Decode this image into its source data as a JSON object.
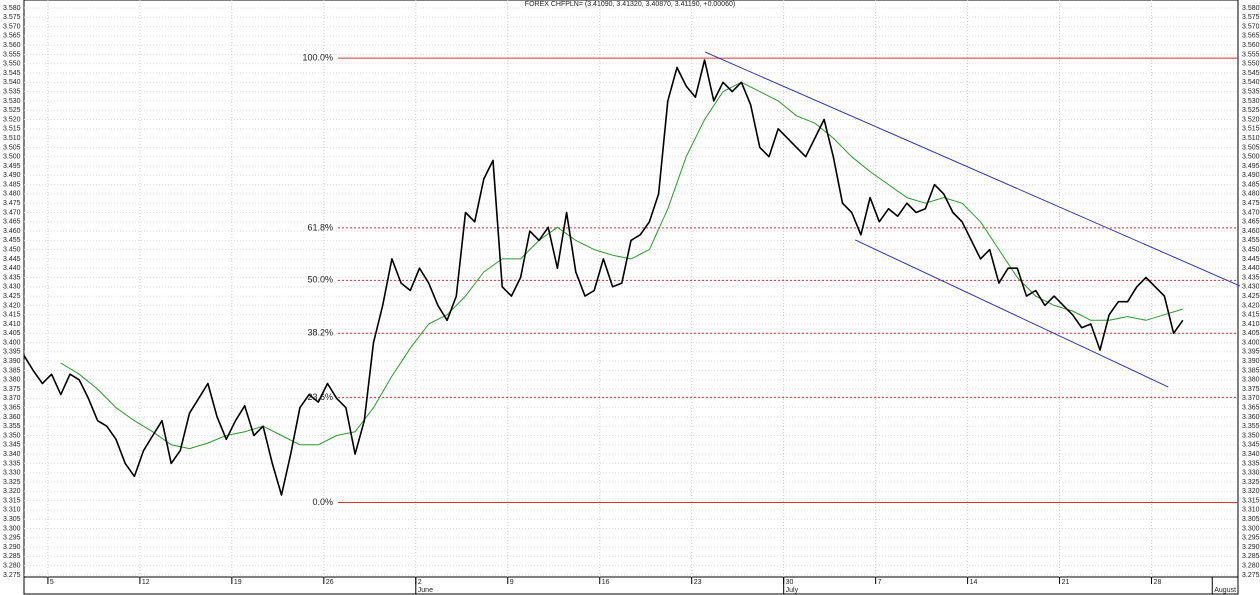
{
  "chart_data": {
    "type": "line",
    "title": "FOREX CHFPLN= (3.41090, 3.41320, 3.40870, 3.41190, +0.00060)",
    "xlim": [
      0,
      66
    ],
    "ylim": [
      3.2739,
      3.5843
    ],
    "grid": true,
    "xticks": [
      {
        "value": 1.3,
        "label": "5"
      },
      {
        "value": 6.3,
        "label": "12"
      },
      {
        "value": 11.3,
        "label": "19"
      },
      {
        "value": 16.3,
        "label": "26"
      },
      {
        "value": 21.3,
        "label": "2"
      },
      {
        "value": 26.3,
        "label": "9"
      },
      {
        "value": 31.3,
        "label": "16"
      },
      {
        "value": 36.3,
        "label": "23"
      },
      {
        "value": 41.3,
        "label": "30"
      },
      {
        "value": 46.3,
        "label": "7"
      },
      {
        "value": 51.3,
        "label": "14"
      },
      {
        "value": 56.3,
        "label": "21"
      },
      {
        "value": 61.3,
        "label": "28"
      }
    ],
    "month_labels": [
      {
        "value": 21.3,
        "label": "June"
      },
      {
        "value": 41.3,
        "label": "July"
      },
      {
        "value": 64.6,
        "label": "August"
      }
    ],
    "yticks": [
      {
        "value": 3.275,
        "label": "3.275"
      },
      {
        "value": 3.28,
        "label": "3.280"
      },
      {
        "value": 3.285,
        "label": "3.285"
      },
      {
        "value": 3.29,
        "label": "3.290"
      },
      {
        "value": 3.295,
        "label": "3.295"
      },
      {
        "value": 3.3,
        "label": "3.300"
      },
      {
        "value": 3.305,
        "label": "3.305"
      },
      {
        "value": 3.31,
        "label": "3.310"
      },
      {
        "value": 3.315,
        "label": "3.315"
      },
      {
        "value": 3.32,
        "label": "3.320"
      },
      {
        "value": 3.325,
        "label": "3.325"
      },
      {
        "value": 3.33,
        "label": "3.330"
      },
      {
        "value": 3.335,
        "label": "3.335"
      },
      {
        "value": 3.34,
        "label": "3.340"
      },
      {
        "value": 3.345,
        "label": "3.345"
      },
      {
        "value": 3.35,
        "label": "3.350"
      },
      {
        "value": 3.355,
        "label": "3.355"
      },
      {
        "value": 3.36,
        "label": "3.360"
      },
      {
        "value": 3.365,
        "label": "3.365"
      },
      {
        "value": 3.37,
        "label": "3.370"
      },
      {
        "value": 3.375,
        "label": "3.375"
      },
      {
        "value": 3.38,
        "label": "3.380"
      },
      {
        "value": 3.385,
        "label": "3.385"
      },
      {
        "value": 3.39,
        "label": "3.390"
      },
      {
        "value": 3.395,
        "label": "3.395"
      },
      {
        "value": 3.4,
        "label": "3.400"
      },
      {
        "value": 3.405,
        "label": "3.405"
      },
      {
        "value": 3.41,
        "label": "3.410"
      },
      {
        "value": 3.415,
        "label": "3.415"
      },
      {
        "value": 3.42,
        "label": "3.420"
      },
      {
        "value": 3.425,
        "label": "3.425"
      },
      {
        "value": 3.43,
        "label": "3.430"
      },
      {
        "value": 3.435,
        "label": "3.435"
      },
      {
        "value": 3.44,
        "label": "3.440"
      },
      {
        "value": 3.445,
        "label": "3.445"
      },
      {
        "value": 3.45,
        "label": "3.450"
      },
      {
        "value": 3.455,
        "label": "3.455"
      },
      {
        "value": 3.46,
        "label": "3.460"
      },
      {
        "value": 3.465,
        "label": "3.465"
      },
      {
        "value": 3.47,
        "label": "3.470"
      },
      {
        "value": 3.475,
        "label": "3.475"
      },
      {
        "value": 3.48,
        "label": "3.480"
      },
      {
        "value": 3.485,
        "label": "3.485"
      },
      {
        "value": 3.49,
        "label": "3.490"
      },
      {
        "value": 3.495,
        "label": "3.495"
      },
      {
        "value": 3.5,
        "label": "3.500"
      },
      {
        "value": 3.505,
        "label": "3.505"
      },
      {
        "value": 3.51,
        "label": "3.510"
      },
      {
        "value": 3.515,
        "label": "3.515"
      },
      {
        "value": 3.52,
        "label": "3.520"
      },
      {
        "value": 3.525,
        "label": "3.525"
      },
      {
        "value": 3.53,
        "label": "3.530"
      },
      {
        "value": 3.535,
        "label": "3.535"
      },
      {
        "value": 3.54,
        "label": "3.540"
      },
      {
        "value": 3.545,
        "label": "3.545"
      },
      {
        "value": 3.55,
        "label": "3.550"
      },
      {
        "value": 3.555,
        "label": "3.555"
      },
      {
        "value": 3.56,
        "label": "3.560"
      },
      {
        "value": 3.565,
        "label": "3.565"
      },
      {
        "value": 3.57,
        "label": "3.570"
      },
      {
        "value": 3.575,
        "label": "3.575"
      },
      {
        "value": 3.58,
        "label": "3.580"
      }
    ],
    "levels": [
      {
        "value": 3.553,
        "label": "100.0%",
        "dashed": false
      },
      {
        "value": 3.4617,
        "label": "61.8%",
        "dashed": true
      },
      {
        "value": 3.4335,
        "label": "50.0%",
        "dashed": true
      },
      {
        "value": 3.405,
        "label": "38.2%",
        "dashed": true
      },
      {
        "value": 3.3705,
        "label": "23.6%",
        "dashed": true
      },
      {
        "value": 3.314,
        "label": "0.0%",
        "dashed": false
      }
    ],
    "level_color": "#e03030",
    "channel_color": "#3030c0",
    "channel": [
      {
        "x": [
          37.03,
          66.1
        ],
        "values": [
          3.5563,
          3.4305
        ]
      },
      {
        "x": [
          45.19,
          62.21
        ],
        "values": [
          3.4552,
          3.3761
        ]
      }
    ],
    "series": [
      {
        "color": "#000000",
        "x": [
          0,
          0.5,
          1,
          1.5,
          2,
          2.5,
          3,
          3.5,
          4,
          4.5,
          5,
          5.5,
          6,
          6.5,
          7,
          7.5,
          8,
          8.5,
          9,
          9.5,
          10,
          10.5,
          11,
          11.5,
          12,
          12.5,
          13,
          13.5,
          14,
          14.5,
          15,
          15.5,
          16,
          16.5,
          17,
          17.5,
          18,
          18.5,
          19,
          19.5,
          20,
          20.5,
          21,
          21.5,
          22,
          22.5,
          23,
          23.5,
          24,
          24.5,
          25,
          25.5,
          26,
          26.5,
          27,
          27.5,
          28,
          28.5,
          29,
          29.5,
          30,
          30.5,
          31,
          31.5,
          32,
          32.5,
          33,
          33.5,
          34,
          34.5,
          35,
          35.5,
          36,
          36.5,
          37,
          37.5,
          38,
          38.5,
          39,
          39.5,
          40,
          40.5,
          41,
          41.5,
          42,
          42.5,
          43,
          43.5,
          44,
          44.5,
          45,
          45.5,
          46,
          46.5,
          47,
          47.5,
          48,
          48.5,
          49,
          49.5,
          50,
          50.5,
          51,
          51.5,
          52,
          52.5,
          53,
          53.5,
          54,
          54.5,
          55,
          55.5,
          56,
          56.5,
          57,
          57.5,
          58,
          58.5,
          59,
          59.5,
          60,
          60.5,
          61,
          61.5,
          62,
          62.5,
          63
        ],
        "values": [
          3.393,
          3.385,
          3.378,
          3.383,
          3.372,
          3.383,
          3.38,
          3.37,
          3.358,
          3.355,
          3.348,
          3.335,
          3.328,
          3.342,
          3.35,
          3.358,
          3.335,
          3.342,
          3.362,
          3.37,
          3.378,
          3.36,
          3.348,
          3.358,
          3.366,
          3.35,
          3.355,
          3.335,
          3.318,
          3.34,
          3.365,
          3.372,
          3.368,
          3.378,
          3.37,
          3.365,
          3.34,
          3.358,
          3.4,
          3.42,
          3.445,
          3.432,
          3.428,
          3.44,
          3.432,
          3.42,
          3.412,
          3.425,
          3.47,
          3.465,
          3.488,
          3.498,
          3.43,
          3.425,
          3.435,
          3.46,
          3.455,
          3.462,
          3.44,
          3.47,
          3.438,
          3.425,
          3.428,
          3.445,
          3.43,
          3.432,
          3.455,
          3.458,
          3.465,
          3.48,
          3.53,
          3.548,
          3.538,
          3.532,
          3.552,
          3.53,
          3.54,
          3.535,
          3.54,
          3.528,
          3.505,
          3.5,
          3.515,
          3.51,
          3.505,
          3.5,
          3.51,
          3.52,
          3.5,
          3.475,
          3.47,
          3.458,
          3.478,
          3.465,
          3.472,
          3.468,
          3.475,
          3.47,
          3.472,
          3.485,
          3.48,
          3.47,
          3.465,
          3.455,
          3.445,
          3.45,
          3.432,
          3.44,
          3.44,
          3.425,
          3.428,
          3.42,
          3.425,
          3.42,
          3.415,
          3.408,
          3.41,
          3.396,
          3.415,
          3.422,
          3.422,
          3.43,
          3.435,
          3.43,
          3.425,
          3.405,
          3.412
        ]
      },
      {
        "color": "#2a9a2a",
        "x": [
          2,
          3,
          4,
          5,
          6,
          7,
          8,
          9,
          10,
          11,
          12,
          13,
          14,
          15,
          16,
          17,
          18,
          19,
          20,
          21,
          22,
          23,
          24,
          25,
          26,
          27,
          28,
          29,
          30,
          31,
          32,
          33,
          34,
          35,
          36,
          37,
          38,
          39,
          40,
          41,
          42,
          43,
          44,
          45,
          46,
          47,
          48,
          49,
          50,
          51,
          52,
          53,
          54,
          55,
          56,
          57,
          58,
          59,
          60,
          61,
          62,
          63
        ],
        "values": [
          3.389,
          3.383,
          3.375,
          3.365,
          3.358,
          3.352,
          3.345,
          3.343,
          3.346,
          3.35,
          3.352,
          3.355,
          3.35,
          3.345,
          3.345,
          3.35,
          3.352,
          3.365,
          3.382,
          3.397,
          3.41,
          3.415,
          3.425,
          3.438,
          3.445,
          3.445,
          3.455,
          3.462,
          3.455,
          3.45,
          3.447,
          3.445,
          3.45,
          3.472,
          3.5,
          3.52,
          3.535,
          3.54,
          3.535,
          3.53,
          3.522,
          3.518,
          3.51,
          3.5,
          3.492,
          3.485,
          3.478,
          3.475,
          3.478,
          3.475,
          3.465,
          3.45,
          3.435,
          3.425,
          3.42,
          3.417,
          3.412,
          3.412,
          3.414,
          3.412,
          3.415,
          3.418
        ]
      }
    ]
  }
}
